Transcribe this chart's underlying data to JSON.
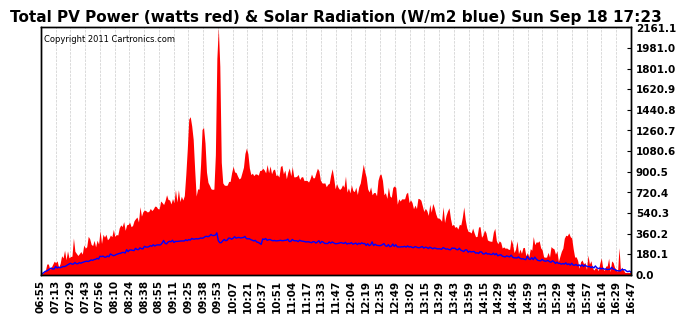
{
  "title": "Total PV Power (watts red) & Solar Radiation (W/m2 blue) Sun Sep 18 17:23",
  "copyright_text": "Copyright 2011 Cartronics.com",
  "y_right_ticks": [
    0.0,
    180.1,
    360.2,
    540.3,
    720.4,
    900.5,
    1080.6,
    1260.7,
    1440.8,
    1620.9,
    1801.0,
    1981.0,
    2161.1
  ],
  "x_tick_labels": [
    "06:55",
    "07:13",
    "07:29",
    "07:43",
    "07:56",
    "08:10",
    "08:24",
    "08:38",
    "08:55",
    "09:11",
    "09:25",
    "09:38",
    "09:53",
    "10:07",
    "10:21",
    "10:37",
    "10:51",
    "11:04",
    "11:17",
    "11:33",
    "11:47",
    "12:04",
    "12:19",
    "12:35",
    "12:49",
    "13:02",
    "13:15",
    "13:29",
    "13:43",
    "13:59",
    "14:15",
    "14:29",
    "14:45",
    "14:59",
    "15:13",
    "15:29",
    "15:44",
    "15:57",
    "16:14",
    "16:29",
    "16:47"
  ],
  "background_color": "#ffffff",
  "plot_bg_color": "#ffffff",
  "red_fill_color": "#ff0000",
  "blue_line_color": "#0000ff",
  "grid_color": "#cccccc",
  "title_fontsize": 11,
  "tick_fontsize": 7.5,
  "ymax": 2161.1,
  "ymin": 0.0,
  "n_points": 400
}
